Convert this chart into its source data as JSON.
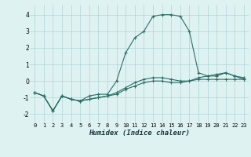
{
  "xlabel": "Humidex (Indice chaleur)",
  "x": [
    0,
    1,
    2,
    3,
    4,
    5,
    6,
    7,
    8,
    9,
    10,
    11,
    12,
    13,
    14,
    15,
    16,
    17,
    18,
    19,
    20,
    21,
    22,
    23
  ],
  "line1": [
    -0.7,
    -0.9,
    -1.8,
    -0.9,
    -1.1,
    -1.2,
    -1.1,
    -1.0,
    -0.9,
    -0.8,
    -0.5,
    -0.3,
    -0.1,
    0.0,
    0.0,
    -0.1,
    -0.1,
    0.0,
    0.1,
    0.1,
    0.1,
    0.1,
    0.1,
    0.1
  ],
  "line2": [
    -0.7,
    -0.9,
    -1.8,
    -0.9,
    -1.1,
    -1.2,
    -0.9,
    -0.8,
    -0.8,
    0.0,
    1.7,
    2.6,
    3.0,
    3.9,
    4.0,
    4.0,
    3.9,
    3.0,
    0.5,
    0.3,
    0.3,
    0.5,
    0.3,
    0.1
  ],
  "line3": [
    -0.7,
    -0.9,
    -1.8,
    -0.9,
    -1.1,
    -1.2,
    -1.1,
    -1.0,
    -0.9,
    -0.7,
    -0.4,
    -0.1,
    0.1,
    0.2,
    0.2,
    0.1,
    0.0,
    0.0,
    0.2,
    0.3,
    0.4,
    0.5,
    0.3,
    0.2
  ],
  "line_color": "#2a6e65",
  "bg_color": "#dff2f2",
  "grid_color": "#aed4d4",
  "ylim": [
    -2.5,
    4.6
  ],
  "yticks": [
    -2,
    -1,
    0,
    1,
    2,
    3,
    4
  ],
  "xticks": [
    0,
    1,
    2,
    3,
    4,
    5,
    6,
    7,
    8,
    9,
    10,
    11,
    12,
    13,
    14,
    15,
    16,
    17,
    18,
    19,
    20,
    21,
    22,
    23
  ],
  "marker": "+",
  "markersize": 3,
  "linewidth": 0.8,
  "tick_fontsize": 5.0,
  "xlabel_fontsize": 6.5
}
